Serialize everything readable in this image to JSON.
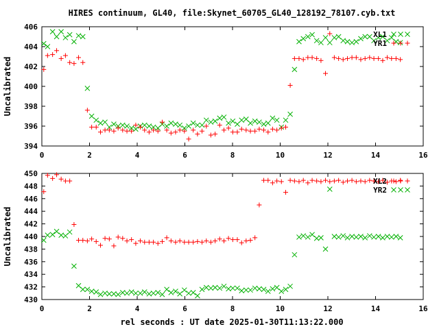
{
  "title": "HIRES continuum, GL40, file:Skynet_60705_GL40_128192_78107.cyb.txt",
  "xlabel": "rel seconds : UT date 2025-01-30T11:13:22.000",
  "colors": {
    "red_series": "#ff0000",
    "green_series": "#00b000",
    "axes": "#000000",
    "background": "#ffffff"
  },
  "chart_data": [
    {
      "type": "scatter",
      "ylabel": "Uncalibrated",
      "xlim": [
        0,
        16
      ],
      "ylim": [
        394,
        406
      ],
      "xticks": [
        0,
        2,
        4,
        6,
        8,
        10,
        12,
        14,
        16
      ],
      "yticks": [
        394,
        396,
        398,
        400,
        402,
        404,
        406
      ],
      "grid": false,
      "legend_position": "top-right",
      "x": [
        0.08,
        0.24,
        0.45,
        0.62,
        0.81,
        0.99,
        1.17,
        1.35,
        1.54,
        1.72,
        1.91,
        2.09,
        2.28,
        2.46,
        2.65,
        2.83,
        3.02,
        3.2,
        3.39,
        3.57,
        3.76,
        3.94,
        4.13,
        4.31,
        4.5,
        4.68,
        4.87,
        5.05,
        5.24,
        5.42,
        5.61,
        5.79,
        5.98,
        6.16,
        6.35,
        6.53,
        6.72,
        6.9,
        7.09,
        7.27,
        7.46,
        7.64,
        7.83,
        8.01,
        8.2,
        8.38,
        8.57,
        8.75,
        8.94,
        9.12,
        9.31,
        9.49,
        9.68,
        9.86,
        10.05,
        10.23,
        10.42,
        10.6,
        10.79,
        10.97,
        11.16,
        11.34,
        11.53,
        11.71,
        11.9,
        12.08,
        12.27,
        12.45,
        12.64,
        12.82,
        13.01,
        13.19,
        13.38,
        13.56,
        13.75,
        13.93,
        14.12,
        14.3,
        14.49,
        14.67,
        14.86,
        15.04
      ],
      "series": [
        {
          "name": "XL1",
          "marker": "x",
          "color": "#00b000",
          "values": [
            404.3,
            404.0,
            405.5,
            405.0,
            405.5,
            404.9,
            405.2,
            404.5,
            405.1,
            405.0,
            399.8,
            397.0,
            396.6,
            396.3,
            396.4,
            395.9,
            396.2,
            396.0,
            396.1,
            396.0,
            395.8,
            395.7,
            396.0,
            396.1,
            396.0,
            395.9,
            395.8,
            396.2,
            396.0,
            396.3,
            396.2,
            396.1,
            395.8,
            396.0,
            396.3,
            396.1,
            396.1,
            396.6,
            396.4,
            396.5,
            396.8,
            396.9,
            396.3,
            396.5,
            396.2,
            396.6,
            396.7,
            396.3,
            396.5,
            396.4,
            396.2,
            396.3,
            396.8,
            396.6,
            395.9,
            396.6,
            397.2,
            401.7,
            404.5,
            404.8,
            405.0,
            405.2,
            404.6,
            404.4,
            404.9,
            404.4,
            404.9,
            405.0,
            404.6,
            404.5,
            404.4,
            404.5,
            404.8,
            405.0,
            405.0,
            404.6,
            404.9,
            405.0,
            404.6,
            404.9,
            404.5,
            404.4
          ]
        },
        {
          "name": "YR1",
          "marker": "+",
          "color": "#ff0000",
          "values": [
            401.7,
            403.1,
            403.2,
            403.6,
            402.8,
            403.1,
            402.4,
            402.3,
            402.9,
            402.4,
            397.6,
            395.9,
            395.9,
            395.4,
            395.6,
            395.6,
            395.5,
            395.8,
            395.6,
            395.5,
            395.5,
            396.1,
            395.9,
            395.6,
            395.4,
            395.6,
            395.5,
            396.4,
            395.6,
            395.3,
            395.4,
            395.6,
            395.5,
            394.7,
            395.6,
            395.2,
            395.5,
            396.0,
            395.1,
            395.2,
            396.1,
            395.6,
            395.8,
            395.4,
            395.4,
            395.7,
            395.6,
            395.5,
            395.5,
            395.7,
            395.6,
            395.4,
            395.7,
            395.6,
            395.8,
            395.9,
            400.1,
            402.8,
            402.8,
            402.7,
            402.9,
            402.9,
            402.8,
            402.6,
            401.3,
            405.3,
            402.9,
            402.8,
            402.7,
            402.8,
            402.9,
            402.9,
            402.7,
            402.8,
            402.9,
            402.8,
            402.8,
            402.6,
            402.9,
            402.8,
            402.8,
            402.7
          ]
        }
      ]
    },
    {
      "type": "scatter",
      "ylabel": "Uncalibrated",
      "xlim": [
        0,
        16
      ],
      "ylim": [
        430,
        450
      ],
      "xticks": [
        0,
        2,
        4,
        6,
        8,
        10,
        12,
        14,
        16
      ],
      "yticks": [
        430,
        432,
        434,
        436,
        438,
        440,
        442,
        444,
        446,
        448,
        450
      ],
      "grid": false,
      "legend_position": "top-right",
      "x": [
        0.08,
        0.24,
        0.45,
        0.62,
        0.81,
        0.99,
        1.17,
        1.35,
        1.54,
        1.72,
        1.91,
        2.09,
        2.28,
        2.46,
        2.65,
        2.83,
        3.02,
        3.2,
        3.39,
        3.57,
        3.76,
        3.94,
        4.13,
        4.31,
        4.5,
        4.68,
        4.87,
        5.05,
        5.24,
        5.42,
        5.61,
        5.79,
        5.98,
        6.16,
        6.35,
        6.53,
        6.72,
        6.9,
        7.09,
        7.27,
        7.46,
        7.64,
        7.83,
        8.01,
        8.2,
        8.38,
        8.57,
        8.75,
        8.94,
        9.12,
        9.31,
        9.49,
        9.68,
        9.86,
        10.05,
        10.23,
        10.42,
        10.6,
        10.79,
        10.97,
        11.16,
        11.34,
        11.53,
        11.71,
        11.9,
        12.08,
        12.27,
        12.45,
        12.64,
        12.82,
        13.01,
        13.19,
        13.38,
        13.56,
        13.75,
        13.93,
        14.12,
        14.3,
        14.49,
        14.67,
        14.86,
        15.04
      ],
      "series": [
        {
          "name": "XL2",
          "marker": "+",
          "color": "#ff0000",
          "values": [
            447.1,
            449.7,
            449.2,
            449.8,
            449.1,
            448.8,
            448.8,
            441.9,
            439.4,
            439.4,
            439.3,
            439.6,
            439.2,
            438.6,
            439.7,
            439.6,
            438.5,
            439.9,
            439.7,
            439.3,
            439.5,
            438.9,
            439.3,
            439.1,
            439.1,
            439.1,
            438.9,
            439.2,
            439.8,
            439.3,
            439.1,
            439.3,
            439.1,
            439.1,
            439.1,
            439.2,
            439.1,
            439.3,
            439.1,
            439.3,
            439.6,
            439.3,
            439.7,
            439.5,
            439.5,
            439.0,
            439.3,
            439.4,
            439.8,
            445.0,
            448.9,
            448.9,
            448.5,
            448.8,
            448.7,
            447.0,
            448.9,
            448.8,
            448.7,
            448.9,
            448.5,
            448.9,
            448.8,
            448.7,
            448.9,
            448.7,
            448.8,
            448.9,
            448.6,
            448.8,
            448.9,
            448.7,
            448.8,
            448.7,
            448.9,
            448.8,
            448.7,
            448.9,
            448.6,
            448.8,
            448.7,
            448.9
          ]
        },
        {
          "name": "YR2",
          "marker": "x",
          "color": "#00b000",
          "values": [
            439.4,
            440.2,
            440.3,
            440.8,
            440.2,
            440.1,
            440.7,
            435.3,
            432.2,
            431.6,
            431.6,
            431.3,
            431.2,
            430.8,
            431.0,
            430.9,
            430.9,
            430.8,
            431.1,
            431.0,
            431.2,
            431.0,
            431.0,
            431.2,
            430.9,
            431.0,
            431.1,
            430.8,
            431.6,
            431.1,
            431.3,
            430.9,
            431.5,
            431.0,
            431.1,
            430.6,
            431.6,
            431.9,
            431.8,
            431.9,
            431.8,
            432.1,
            431.7,
            431.8,
            431.8,
            431.4,
            431.5,
            431.5,
            431.8,
            431.7,
            431.6,
            431.3,
            431.7,
            431.9,
            431.3,
            431.6,
            432.1,
            437.1,
            439.9,
            440.1,
            439.9,
            440.3,
            439.7,
            439.8,
            438.0,
            447.5,
            440.0,
            439.9,
            440.1,
            439.8,
            440.0,
            439.9,
            440.0,
            439.8,
            440.1,
            439.9,
            440.0,
            439.8,
            440.0,
            439.9,
            440.0,
            439.8
          ]
        }
      ]
    }
  ]
}
